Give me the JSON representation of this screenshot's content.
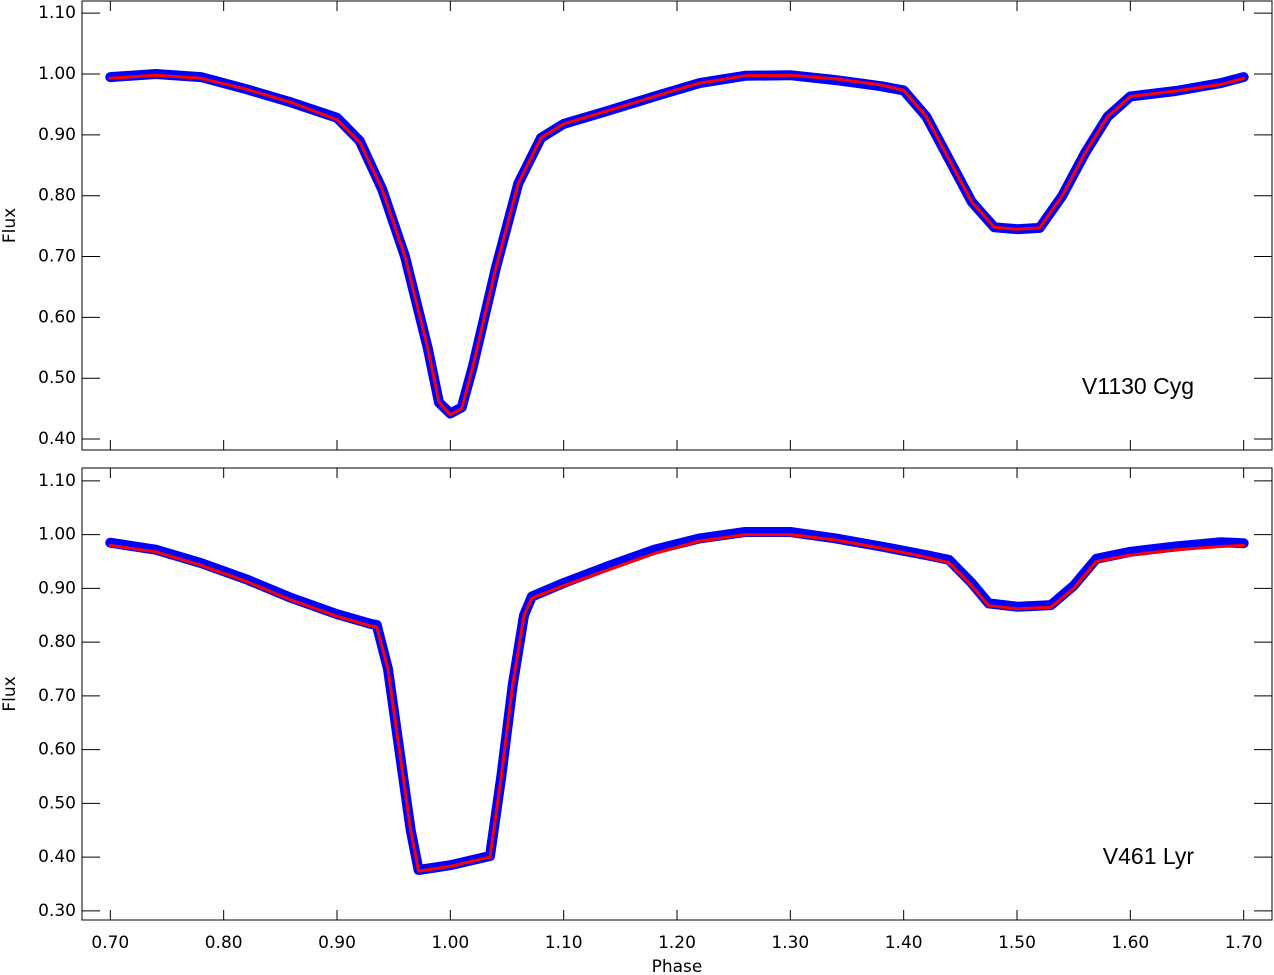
{
  "chart_data": [
    {
      "type": "line",
      "ylabel": "Flux",
      "annotation": "V1130 Cyg",
      "xlim": [
        0.675,
        1.725
      ],
      "ylim": [
        0.382,
        1.12
      ],
      "show_xtick_labels": false,
      "xticks": [
        {
          "value": 0.7,
          "label": "0.70"
        },
        {
          "value": 0.8,
          "label": "0.80"
        },
        {
          "value": 0.9,
          "label": "0.90"
        },
        {
          "value": 1.0,
          "label": "1.00"
        },
        {
          "value": 1.1,
          "label": "1.10"
        },
        {
          "value": 1.2,
          "label": "1.20"
        },
        {
          "value": 1.3,
          "label": "1.30"
        },
        {
          "value": 1.4,
          "label": "1.40"
        },
        {
          "value": 1.5,
          "label": "1.50"
        },
        {
          "value": 1.6,
          "label": "1.60"
        },
        {
          "value": 1.7,
          "label": "1.70"
        }
      ],
      "yticks": [
        {
          "value": 0.4,
          "label": "0.40"
        },
        {
          "value": 0.5,
          "label": "0.50"
        },
        {
          "value": 0.6,
          "label": "0.60"
        },
        {
          "value": 0.7,
          "label": "0.70"
        },
        {
          "value": 0.8,
          "label": "0.80"
        },
        {
          "value": 0.9,
          "label": "0.90"
        },
        {
          "value": 1.0,
          "label": "1.00"
        },
        {
          "value": 1.1,
          "label": "1.10"
        }
      ],
      "x": [
        0.7,
        0.74,
        0.78,
        0.82,
        0.86,
        0.9,
        0.92,
        0.94,
        0.96,
        0.98,
        0.99,
        1.0,
        1.01,
        1.02,
        1.04,
        1.06,
        1.08,
        1.1,
        1.14,
        1.18,
        1.22,
        1.26,
        1.3,
        1.34,
        1.38,
        1.4,
        1.42,
        1.44,
        1.46,
        1.48,
        1.5,
        1.52,
        1.54,
        1.56,
        1.58,
        1.6,
        1.64,
        1.68,
        1.7
      ],
      "series": [
        {
          "color": "#0000ff",
          "values": [
            0.995,
            1.0,
            0.995,
            0.975,
            0.953,
            0.928,
            0.89,
            0.81,
            0.7,
            0.55,
            0.46,
            0.442,
            0.452,
            0.52,
            0.68,
            0.82,
            0.895,
            0.918,
            0.94,
            0.963,
            0.985,
            0.997,
            0.998,
            0.99,
            0.98,
            0.973,
            0.93,
            0.86,
            0.79,
            0.748,
            0.745,
            0.747,
            0.8,
            0.87,
            0.93,
            0.963,
            0.972,
            0.985,
            0.995
          ]
        },
        {
          "color": "#ff0000",
          "values": [
            0.993,
            0.998,
            0.993,
            0.975,
            0.953,
            0.925,
            0.888,
            0.81,
            0.7,
            0.55,
            0.46,
            0.44,
            0.45,
            0.52,
            0.68,
            0.82,
            0.895,
            0.918,
            0.94,
            0.963,
            0.985,
            0.997,
            0.998,
            0.992,
            0.982,
            0.973,
            0.93,
            0.86,
            0.79,
            0.748,
            0.745,
            0.747,
            0.8,
            0.87,
            0.93,
            0.963,
            0.972,
            0.983,
            0.993
          ]
        }
      ]
    },
    {
      "type": "line",
      "ylabel": "Flux",
      "xlabel": "Phase",
      "annotation": "V461 Lyr",
      "xlim": [
        0.675,
        1.725
      ],
      "ylim": [
        0.283,
        1.124
      ],
      "show_xtick_labels": true,
      "xticks": [
        {
          "value": 0.7,
          "label": "0.70"
        },
        {
          "value": 0.8,
          "label": "0.80"
        },
        {
          "value": 0.9,
          "label": "0.90"
        },
        {
          "value": 1.0,
          "label": "1.00"
        },
        {
          "value": 1.1,
          "label": "1.10"
        },
        {
          "value": 1.2,
          "label": "1.20"
        },
        {
          "value": 1.3,
          "label": "1.30"
        },
        {
          "value": 1.4,
          "label": "1.40"
        },
        {
          "value": 1.5,
          "label": "1.50"
        },
        {
          "value": 1.6,
          "label": "1.60"
        },
        {
          "value": 1.7,
          "label": "1.70"
        }
      ],
      "yticks": [
        {
          "value": 0.3,
          "label": "0.30"
        },
        {
          "value": 0.4,
          "label": "0.40"
        },
        {
          "value": 0.5,
          "label": "0.50"
        },
        {
          "value": 0.6,
          "label": "0.60"
        },
        {
          "value": 0.7,
          "label": "0.70"
        },
        {
          "value": 0.8,
          "label": "0.80"
        },
        {
          "value": 0.9,
          "label": "0.90"
        },
        {
          "value": 1.0,
          "label": "1.00"
        },
        {
          "value": 1.1,
          "label": "1.10"
        }
      ],
      "x": [
        0.7,
        0.74,
        0.78,
        0.82,
        0.86,
        0.9,
        0.93,
        0.935,
        0.945,
        0.955,
        0.965,
        0.972,
        1.0,
        1.035,
        1.045,
        1.055,
        1.065,
        1.072,
        1.1,
        1.14,
        1.18,
        1.22,
        1.26,
        1.3,
        1.34,
        1.38,
        1.42,
        1.44,
        1.46,
        1.475,
        1.5,
        1.53,
        1.55,
        1.57,
        1.6,
        1.64,
        1.68,
        1.7
      ],
      "series": [
        {
          "color": "#0000ff",
          "values": [
            0.985,
            0.972,
            0.947,
            0.917,
            0.882,
            0.852,
            0.834,
            0.832,
            0.75,
            0.6,
            0.45,
            0.376,
            0.385,
            0.402,
            0.55,
            0.72,
            0.85,
            0.885,
            0.91,
            0.942,
            0.972,
            0.993,
            1.005,
            1.005,
            0.993,
            0.978,
            0.962,
            0.953,
            0.91,
            0.872,
            0.866,
            0.869,
            0.905,
            0.955,
            0.968,
            0.978,
            0.986,
            0.984
          ]
        },
        {
          "color": "#ff0000",
          "values": [
            0.98,
            0.968,
            0.943,
            0.913,
            0.878,
            0.848,
            0.83,
            0.828,
            0.75,
            0.6,
            0.45,
            0.374,
            0.383,
            0.4,
            0.55,
            0.72,
            0.85,
            0.882,
            0.905,
            0.935,
            0.965,
            0.988,
            1.0,
            1.0,
            0.99,
            0.975,
            0.958,
            0.948,
            0.905,
            0.868,
            0.862,
            0.865,
            0.9,
            0.95,
            0.962,
            0.972,
            0.978,
            0.98
          ]
        }
      ]
    }
  ]
}
